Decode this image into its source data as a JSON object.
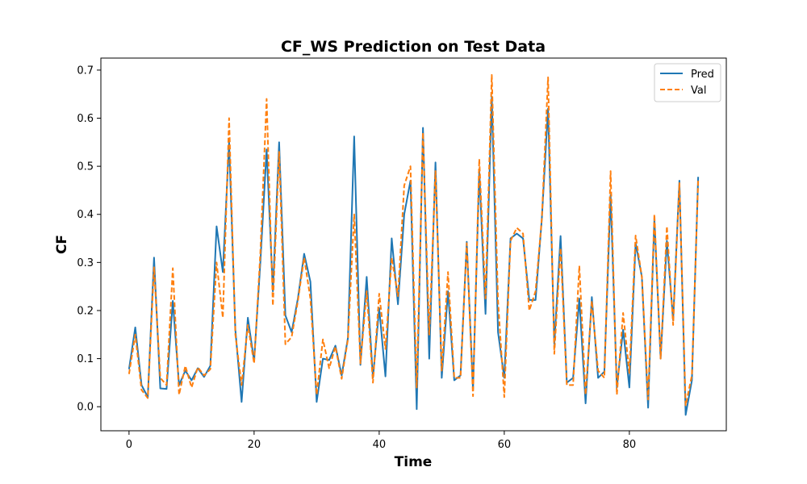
{
  "chart_data": {
    "type": "line",
    "title": "CF_WS Prediction on Test Data",
    "xlabel": "Time",
    "ylabel": "CF",
    "xlim": [
      -4.5,
      95.5
    ],
    "ylim": [
      -0.05,
      0.725
    ],
    "xticks": [
      0,
      20,
      40,
      60,
      80
    ],
    "xtick_labels": [
      "0",
      "20",
      "40",
      "60",
      "80"
    ],
    "yticks": [
      0.0,
      0.1,
      0.2,
      0.3,
      0.4,
      0.5,
      0.6,
      0.7
    ],
    "ytick_labels": [
      "0.0",
      "0.1",
      "0.2",
      "0.3",
      "0.4",
      "0.5",
      "0.6",
      "0.7"
    ],
    "grid": false,
    "legend": {
      "placement": "top-right"
    },
    "series": [
      {
        "name": "Pred",
        "color": "#1f77b4",
        "style": "solid",
        "x": [
          0,
          1,
          2,
          3,
          4,
          5,
          6,
          7,
          8,
          9,
          10,
          11,
          12,
          13,
          14,
          15,
          16,
          17,
          18,
          19,
          20,
          21,
          22,
          23,
          24,
          25,
          26,
          27,
          28,
          29,
          30,
          31,
          32,
          33,
          34,
          35,
          36,
          37,
          38,
          39,
          40,
          41,
          42,
          43,
          44,
          45,
          46,
          47,
          48,
          49,
          50,
          51,
          52,
          53,
          54,
          55,
          56,
          57,
          58,
          59,
          60,
          61,
          62,
          63,
          64,
          65,
          66,
          67,
          68,
          69,
          70,
          71,
          72,
          73,
          74,
          75,
          76,
          77,
          78,
          79,
          80,
          81,
          82,
          83,
          84,
          85,
          86,
          87,
          88,
          89,
          90,
          91
        ],
        "values": [
          0.078,
          0.165,
          0.045,
          0.02,
          0.31,
          0.038,
          0.037,
          0.22,
          0.045,
          0.075,
          0.055,
          0.08,
          0.062,
          0.085,
          0.375,
          0.28,
          0.55,
          0.16,
          0.01,
          0.185,
          0.095,
          0.3,
          0.535,
          0.24,
          0.55,
          0.19,
          0.155,
          0.225,
          0.318,
          0.26,
          0.01,
          0.1,
          0.097,
          0.127,
          0.065,
          0.143,
          0.562,
          0.087,
          0.27,
          0.06,
          0.205,
          0.063,
          0.35,
          0.213,
          0.4,
          0.47,
          -0.005,
          0.58,
          0.1,
          0.508,
          0.06,
          0.24,
          0.055,
          0.065,
          0.343,
          0.035,
          0.49,
          0.193,
          0.645,
          0.155,
          0.06,
          0.35,
          0.36,
          0.35,
          0.222,
          0.222,
          0.39,
          0.62,
          0.13,
          0.355,
          0.05,
          0.06,
          0.225,
          0.007,
          0.228,
          0.06,
          0.073,
          0.44,
          0.04,
          0.16,
          0.04,
          0.34,
          0.27,
          -0.002,
          0.39,
          0.1,
          0.345,
          0.18,
          0.47,
          -0.017,
          0.055,
          0.478
        ]
      },
      {
        "name": "Val",
        "color": "#ff7f0e",
        "style": "dashed",
        "x": [
          0,
          1,
          2,
          3,
          4,
          5,
          6,
          7,
          8,
          9,
          10,
          11,
          12,
          13,
          14,
          15,
          16,
          17,
          18,
          19,
          20,
          21,
          22,
          23,
          24,
          25,
          26,
          27,
          28,
          29,
          30,
          31,
          32,
          33,
          34,
          35,
          36,
          37,
          38,
          39,
          40,
          41,
          42,
          43,
          44,
          45,
          46,
          47,
          48,
          49,
          50,
          51,
          52,
          53,
          54,
          55,
          56,
          57,
          58,
          59,
          60,
          61,
          62,
          63,
          64,
          65,
          66,
          67,
          68,
          69,
          70,
          71,
          72,
          73,
          74,
          75,
          76,
          77,
          78,
          79,
          80,
          81,
          82,
          83,
          84,
          85,
          86,
          87,
          88,
          89,
          90,
          91
        ],
        "values": [
          0.068,
          0.15,
          0.035,
          0.018,
          0.29,
          0.06,
          0.045,
          0.288,
          0.025,
          0.085,
          0.04,
          0.082,
          0.065,
          0.078,
          0.3,
          0.185,
          0.6,
          0.15,
          0.045,
          0.17,
          0.09,
          0.32,
          0.64,
          0.21,
          0.53,
          0.13,
          0.145,
          0.22,
          0.31,
          0.225,
          0.025,
          0.14,
          0.08,
          0.125,
          0.058,
          0.14,
          0.4,
          0.09,
          0.24,
          0.05,
          0.235,
          0.12,
          0.31,
          0.23,
          0.46,
          0.5,
          0.04,
          0.57,
          0.15,
          0.49,
          0.075,
          0.28,
          0.06,
          0.06,
          0.34,
          0.022,
          0.515,
          0.225,
          0.69,
          0.22,
          0.02,
          0.345,
          0.372,
          0.36,
          0.2,
          0.24,
          0.39,
          0.685,
          0.11,
          0.33,
          0.045,
          0.045,
          0.293,
          0.025,
          0.22,
          0.075,
          0.06,
          0.49,
          0.025,
          0.195,
          0.07,
          0.356,
          0.27,
          0.015,
          0.4,
          0.1,
          0.375,
          0.17,
          0.465,
          0.003,
          0.065,
          0.47
        ]
      }
    ]
  }
}
